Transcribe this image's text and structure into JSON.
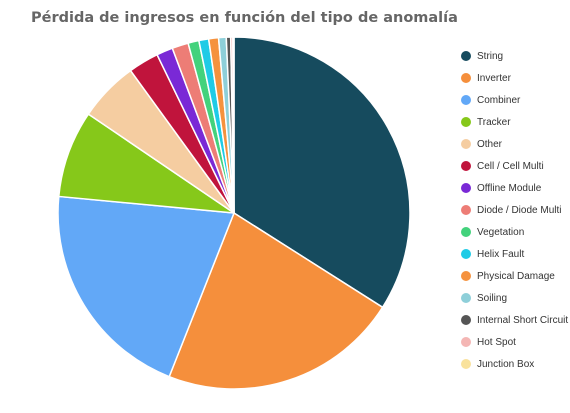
{
  "chart_data": {
    "type": "pie",
    "title": "Pérdida de ingresos en función del tipo de anomalía",
    "legend_position": "right",
    "series": [
      {
        "name": "String",
        "value": 34.0,
        "color": "#164b5e"
      },
      {
        "name": "Inverter",
        "value": 22.0,
        "color": "#f58f3c"
      },
      {
        "name": "Combiner",
        "value": 20.5,
        "color": "#62a8f7"
      },
      {
        "name": "Tracker",
        "value": 8.0,
        "color": "#86c81a"
      },
      {
        "name": "Other",
        "value": 5.5,
        "color": "#f5cda1"
      },
      {
        "name": "Cell / Cell Multi",
        "value": 2.8,
        "color": "#c0143c"
      },
      {
        "name": "Offline Module",
        "value": 1.5,
        "color": "#7a29d6"
      },
      {
        "name": "Diode / Diode Multi",
        "value": 1.5,
        "color": "#ed7d76"
      },
      {
        "name": "Vegetation",
        "value": 1.0,
        "color": "#43d27c"
      },
      {
        "name": "Helix Fault",
        "value": 0.9,
        "color": "#1fcbe6"
      },
      {
        "name": "Physical Damage",
        "value": 0.9,
        "color": "#f5923e"
      },
      {
        "name": "Soiling",
        "value": 0.7,
        "color": "#8ecfd9"
      },
      {
        "name": "Internal Short Circuit",
        "value": 0.4,
        "color": "#555555"
      },
      {
        "name": "Hot Spot",
        "value": 0.2,
        "color": "#f4b6b4"
      },
      {
        "name": "Junction Box",
        "value": 0.1,
        "color": "#f9e29c"
      }
    ]
  }
}
